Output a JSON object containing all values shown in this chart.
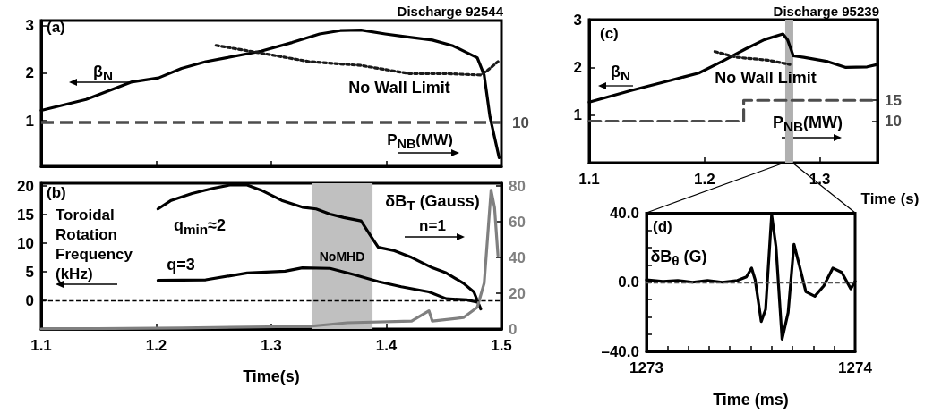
{
  "chart_data": [
    {
      "type": "line",
      "annotations": [
        "(a)",
        "Discharge 92544",
        "P$_{NB}$(MW)",
        "10"
      ],
      "xlim": [
        1.1,
        1.5
      ],
      "xticks": [
        1.1,
        1.2,
        1.3,
        1.4,
        1.5
      ],
      "ylim": [
        0.05,
        3.1
      ],
      "yticks": [
        1,
        2,
        3
      ],
      "tick_labels": "y",
      "marker": "none",
      "ref_lines": [
        {
          "axis": "y",
          "value": 0.97,
          "line_style": "dashed",
          "color": "#4d4d4d"
        }
      ],
      "series": [
        {
          "name": "β$_{N}$",
          "color": "#000000",
          "line_style": "solid",
          "x": [
            1.1,
            1.139,
            1.178,
            1.202,
            1.222,
            1.243,
            1.261,
            1.291,
            1.318,
            1.342,
            1.36,
            1.378,
            1.399,
            1.42,
            1.44,
            1.458,
            1.479,
            1.485,
            1.49,
            1.494,
            1.498
          ],
          "values": [
            1.22,
            1.45,
            1.81,
            1.9,
            2.1,
            2.24,
            2.32,
            2.46,
            2.64,
            2.82,
            2.89,
            2.9,
            2.82,
            2.75,
            2.69,
            2.57,
            2.32,
            1.96,
            1.09,
            0.66,
            0.23
          ]
        },
        {
          "name": "No Wall Limit",
          "color": "#1a1a1a",
          "line_style": "dotted",
          "x": [
            1.252,
            1.291,
            1.333,
            1.378,
            1.42,
            1.452,
            1.482,
            1.488,
            1.497
          ],
          "values": [
            2.58,
            2.42,
            2.24,
            2.16,
            1.99,
            1.99,
            1.96,
            2.06,
            2.24
          ]
        }
      ]
    },
    {
      "type": "line",
      "annotations": [
        "(b)",
        "n=1"
      ],
      "ylabel": "Toroidal Rotation Frequency (kHz)",
      "xlabel": "Time(s)",
      "xlim": [
        1.1,
        1.5
      ],
      "xticks": [
        1.1,
        1.2,
        1.3,
        1.4,
        1.5
      ],
      "ylim": [
        -5,
        20.5
      ],
      "yticks": [
        {
          "value": -5,
          "label": null
        },
        0,
        5,
        10,
        15,
        20
      ],
      "y2lim": [
        0,
        81.5
      ],
      "y2ticks": [
        0,
        20,
        40,
        60,
        80
      ],
      "marker": "none",
      "ref_lines": [
        {
          "axis": "y",
          "value": 0,
          "line_style": "dashed",
          "color": "#000000"
        }
      ],
      "bands": [
        {
          "axis": "x",
          "from": 1.335,
          "to": 1.388,
          "label": "NoMHD",
          "color": "#c0c0c0"
        }
      ],
      "series": [
        {
          "name": "q$_{min}$≈2",
          "color": "#000000",
          "line_style": "solid",
          "x": [
            1.2015,
            1.213,
            1.231,
            1.249,
            1.264,
            1.279,
            1.291,
            1.309,
            1.327,
            1.339,
            1.351,
            1.363,
            1.378,
            1.387,
            1.393,
            1.407,
            1.422,
            1.44,
            1.452,
            1.467,
            1.476,
            1.482
          ],
          "values": [
            16.0,
            17.5,
            18.7,
            19.6,
            20.2,
            20.2,
            19.3,
            17.5,
            16.3,
            16.0,
            15.1,
            14.5,
            13.9,
            11.1,
            9.3,
            8.7,
            7.5,
            5.7,
            4.8,
            3.0,
            1.5,
            -1.5
          ]
        },
        {
          "name": "q=3",
          "color": "#000000",
          "line_style": "solid",
          "x": [
            1.2015,
            1.243,
            1.279,
            1.312,
            1.327,
            1.351,
            1.372,
            1.393,
            1.413,
            1.437,
            1.452,
            1.47,
            1.479
          ],
          "values": [
            3.5,
            3.6,
            4.8,
            5.1,
            5.7,
            5.6,
            4.5,
            3.3,
            2.4,
            1.5,
            0.3,
            0.1,
            -0.3
          ]
        },
        {
          "name": "δB$_{T}$ (Gauss)",
          "color": "#808080",
          "line_style": "solid",
          "axis": "y2",
          "x": [
            1.1,
            1.222,
            1.333,
            1.366,
            1.422,
            1.437,
            1.44,
            1.467,
            1.479,
            1.485,
            1.491,
            1.494,
            1.497
          ],
          "values": [
            0,
            0.6,
            1.5,
            3.5,
            4.4,
            10.2,
            4.4,
            6.4,
            12.1,
            25.6,
            77.6,
            68,
            41
          ]
        }
      ]
    },
    {
      "type": "line",
      "annotations": [
        "(c)",
        "Discharge 95239"
      ],
      "xlabel": "Time (s)",
      "xlim": [
        1.1,
        1.35
      ],
      "xticks": [
        1.1,
        1.2,
        1.3
      ],
      "ylim": [
        0,
        3
      ],
      "yticks": [
        1,
        2,
        3
      ],
      "y2lim": [
        0,
        34.4
      ],
      "y2ticks": [
        10,
        15
      ],
      "marker": "none",
      "bands": [
        {
          "axis": "x",
          "from": 1.27,
          "to": 1.277,
          "color": "#b0b0b0"
        }
      ],
      "series": [
        {
          "name": "β$_{N}$",
          "color": "#000000",
          "line_style": "solid",
          "x": [
            1.1,
            1.137,
            1.171,
            1.195,
            1.215,
            1.236,
            1.252,
            1.268,
            1.272,
            1.277,
            1.286,
            1.307,
            1.322,
            1.341,
            1.35
          ],
          "values": [
            1.27,
            1.52,
            1.73,
            1.88,
            2.12,
            2.39,
            2.58,
            2.7,
            2.58,
            2.24,
            2.21,
            2.12,
            2.0,
            2.01,
            2.06
          ]
        },
        {
          "name": "No Wall Limit",
          "color": "#1a1a1a",
          "line_style": "dotted",
          "x": [
            1.209,
            1.228,
            1.255,
            1.274
          ],
          "values": [
            2.33,
            2.21,
            2.15,
            2.06
          ]
        },
        {
          "name": "P$_{NB}$(MW)",
          "color": "#4d4d4d",
          "line_style": "dashed",
          "type": "step",
          "axis": "y2",
          "x": [
            1.1,
            1.234,
            1.35
          ],
          "values": [
            10,
            15,
            15
          ]
        }
      ]
    },
    {
      "type": "line",
      "annotations": [
        "(d)"
      ],
      "xlabel": "Time (ms)",
      "xlim": [
        1273,
        1274
      ],
      "xticks": [
        1273,
        {
          "value": 1273.1,
          "label": null
        },
        {
          "value": 1273.2,
          "label": null
        },
        {
          "value": 1273.3,
          "label": null
        },
        {
          "value": 1273.4,
          "label": null
        },
        {
          "value": 1273.5,
          "label": null
        },
        {
          "value": 1273.6,
          "label": null
        },
        {
          "value": 1273.7,
          "label": null
        },
        {
          "value": 1273.8,
          "label": null
        },
        {
          "value": 1273.9,
          "label": null
        },
        1274
      ],
      "ylim": [
        -40,
        40
      ],
      "yticks": [
        {
          "value": -40,
          "label": "–40.0"
        },
        {
          "value": -30,
          "label": null
        },
        {
          "value": -20,
          "label": null
        },
        {
          "value": -10,
          "label": null
        },
        {
          "value": 0,
          "label": "0.0"
        },
        {
          "value": 10,
          "label": null
        },
        {
          "value": 20,
          "label": null
        },
        {
          "value": 30,
          "label": null
        },
        {
          "value": 40,
          "label": "40.0"
        }
      ],
      "marker": "none",
      "ref_lines": [
        {
          "axis": "y",
          "value": 0,
          "line_style": "dashed",
          "color": "#555555"
        }
      ],
      "series": [
        {
          "name": "δB$_{θ}$ (G)",
          "color": "#000000",
          "line_style": "solid",
          "x": [
            1273.0,
            1273.079,
            1273.15,
            1273.221,
            1273.293,
            1273.364,
            1273.436,
            1273.479,
            1273.504,
            1273.521,
            1273.55,
            1273.571,
            1273.6,
            1273.621,
            1273.65,
            1273.679,
            1273.707,
            1273.736,
            1273.764,
            1273.807,
            1273.85,
            1273.893,
            1273.936,
            1273.979,
            1274.0
          ],
          "values": [
            1.4,
            0.5,
            1.0,
            0,
            1.0,
            0,
            1.0,
            3.1,
            8.2,
            1.4,
            -22.7,
            -15.8,
            39.1,
            20.3,
            -33,
            -17.5,
            22,
            8.2,
            -5.5,
            -8.1,
            -2.1,
            8.2,
            5.7,
            -3.8,
            0.5
          ]
        }
      ]
    }
  ]
}
